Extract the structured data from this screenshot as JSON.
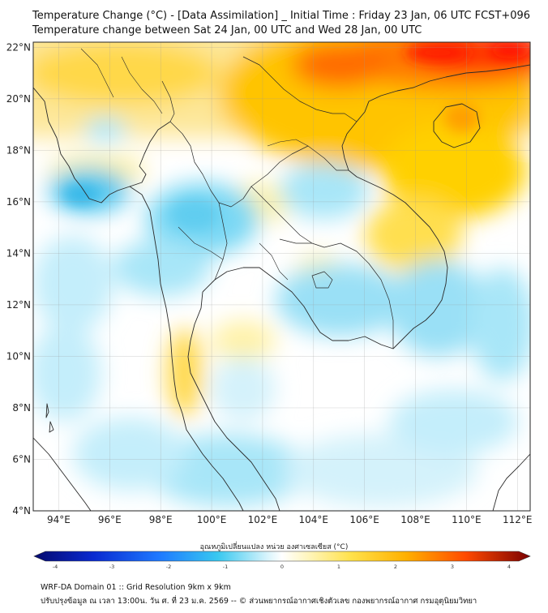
{
  "header": {
    "title_line1": "Temperature Change (°C) - [Data Assimilation] _ Initial Time : Friday 23 Jan, 06 UTC FCST+096",
    "title_line2": "Temperature change between Sat 24 Jan, 00 UTC and Wed 28 Jan, 00 UTC"
  },
  "map": {
    "lat_labels": [
      "22°N",
      "20°N",
      "18°N",
      "16°N",
      "14°N",
      "12°N",
      "10°N",
      "8°N",
      "6°N",
      "4°N"
    ],
    "lat_values": [
      22,
      20,
      18,
      16,
      14,
      12,
      10,
      8,
      6,
      4
    ],
    "lon_labels": [
      "94°E",
      "96°E",
      "98°E",
      "100°E",
      "102°E",
      "104°E",
      "106°E",
      "108°E",
      "110°E",
      "112°E"
    ],
    "lon_values": [
      94,
      96,
      98,
      100,
      102,
      104,
      106,
      108,
      110,
      112
    ],
    "extent": {
      "lon_min": 93,
      "lon_max": 112.5,
      "lat_min": 4,
      "lat_max": 22.2
    },
    "grid": true,
    "colors": {
      "neutral": "#ffffff",
      "warm_1": "#fcf0a0",
      "warm_2": "#ffc600",
      "warm_3": "#ff5a00",
      "warm_4": "#ff1e00",
      "cool_1": "#c8f0fa",
      "cool_2": "#6ed2f0",
      "border": "#2a2a2a"
    }
  },
  "colorbar": {
    "label": "อุณหภูมิเปลี่ยนแปลง หน่วย องศาเซลเซียส (°C)",
    "ticks": [
      "-4",
      "-3",
      "-2",
      "-1",
      "0",
      "1",
      "2",
      "3",
      "4"
    ],
    "tick_values": [
      -4,
      -3,
      -2,
      -1,
      0,
      1,
      2,
      3,
      4
    ],
    "range": [
      -4,
      4
    ]
  },
  "footer": {
    "line1": "WRF-DA Domain 01 :: Grid Resolution 9km x 9km",
    "line2": "ปรับปรุงข้อมูล ณ เวลา 13:00น. วัน ศ. ที่ 23 ม.ค. 2569 -- © ส่วนพยากรณ์อากาศเชิงตัวเลข กองพยากรณ์อากาศ กรมอุตุนิยมวิทยา"
  }
}
